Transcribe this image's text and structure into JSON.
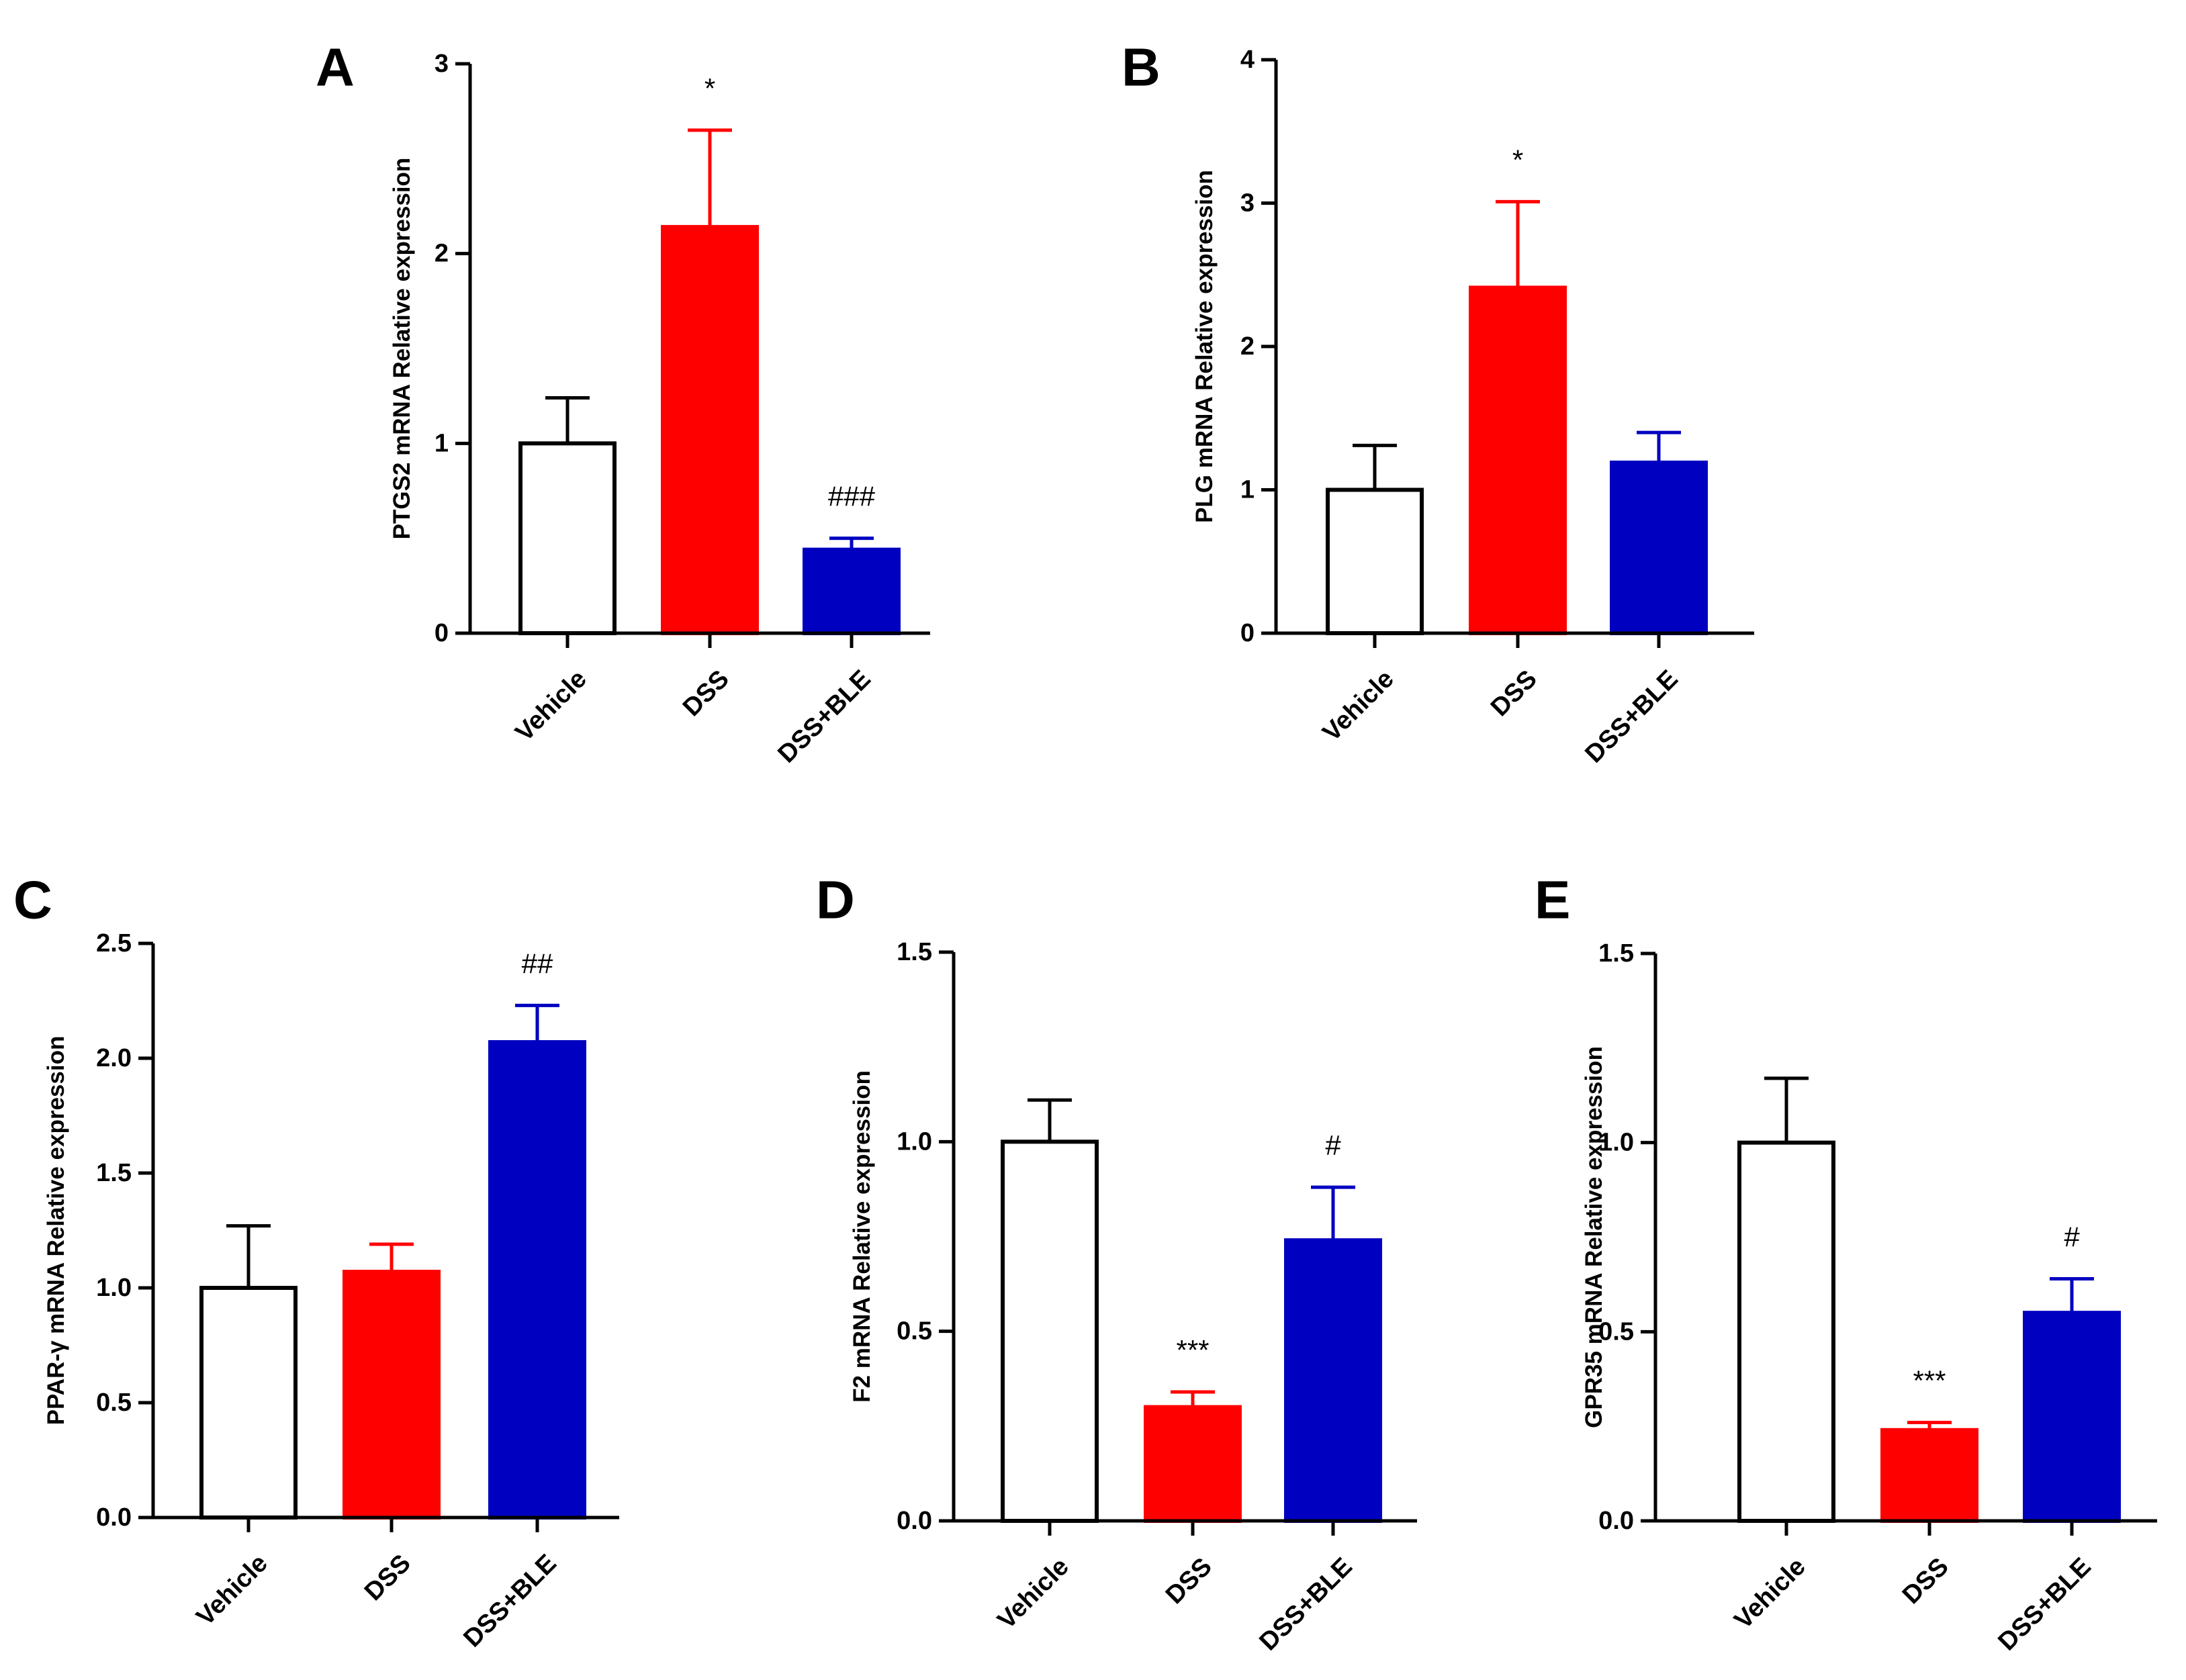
{
  "colors": {
    "axis": "#000000",
    "vehicle_fill": "#ffffff",
    "dss": "#ff0000",
    "dss_ble": "#0000c0"
  },
  "chart_data": [
    {
      "panel": "A",
      "type": "bar",
      "ylabel": "PTGS2 mRNA Relative expression",
      "categories": [
        "Vehicle",
        "DSS",
        "DSS+BLE"
      ],
      "values": [
        1.0,
        2.14,
        0.44
      ],
      "errors": [
        0.24,
        0.51,
        0.06
      ],
      "annotations": [
        "",
        "*",
        "###"
      ],
      "ylim": [
        0,
        3
      ],
      "yticks": [
        0,
        1,
        2,
        3
      ],
      "ytick_labels": [
        "0",
        "1",
        "2",
        "3"
      ]
    },
    {
      "panel": "B",
      "type": "bar",
      "ylabel": "PLG mRNA Relative expression",
      "categories": [
        "Vehicle",
        "DSS",
        "DSS+BLE"
      ],
      "values": [
        1.0,
        2.41,
        1.19
      ],
      "errors": [
        0.31,
        0.6,
        0.21
      ],
      "annotations": [
        "",
        "*",
        ""
      ],
      "ylim": [
        0,
        4
      ],
      "yticks": [
        0,
        1,
        2,
        3,
        4
      ],
      "ytick_labels": [
        "0",
        "1",
        "2",
        "3",
        "4"
      ]
    },
    {
      "panel": "C",
      "type": "bar",
      "ylabel": "PPAR-γ mRNA Relative expression",
      "categories": [
        "Vehicle",
        "DSS",
        "DSS+BLE"
      ],
      "values": [
        1.0,
        1.07,
        2.07
      ],
      "errors": [
        0.27,
        0.12,
        0.16
      ],
      "annotations": [
        "",
        "",
        "##"
      ],
      "ylim": [
        0,
        2.5
      ],
      "yticks": [
        0,
        0.5,
        1,
        1.5,
        2,
        2.5
      ],
      "ytick_labels": [
        "0.0",
        "0.5",
        "1.0",
        "1.5",
        "2.0",
        "2.5"
      ]
    },
    {
      "panel": "D",
      "type": "bar",
      "ylabel": "F2 mRNA Relative expression",
      "categories": [
        "Vehicle",
        "DSS",
        "DSS+BLE"
      ],
      "values": [
        1.0,
        0.3,
        0.74
      ],
      "errors": [
        0.11,
        0.04,
        0.14
      ],
      "annotations": [
        "",
        "***",
        "#"
      ],
      "ylim": [
        0,
        1.5
      ],
      "yticks": [
        0,
        0.5,
        1,
        1.5
      ],
      "ytick_labels": [
        "0.0",
        "0.5",
        "1.0",
        "1.5"
      ]
    },
    {
      "panel": "E",
      "type": "bar",
      "ylabel": "GPR35 mRNA Relative expression",
      "categories": [
        "Vehicle",
        "DSS",
        "DSS+BLE"
      ],
      "values": [
        1.0,
        0.24,
        0.55
      ],
      "errors": [
        0.17,
        0.02,
        0.09
      ],
      "annotations": [
        "",
        "***",
        "#"
      ],
      "ylim": [
        0,
        1.5
      ],
      "yticks": [
        0,
        0.5,
        1,
        1.5
      ],
      "ytick_labels": [
        "0.0",
        "0.5",
        "1.0",
        "1.5"
      ]
    }
  ]
}
